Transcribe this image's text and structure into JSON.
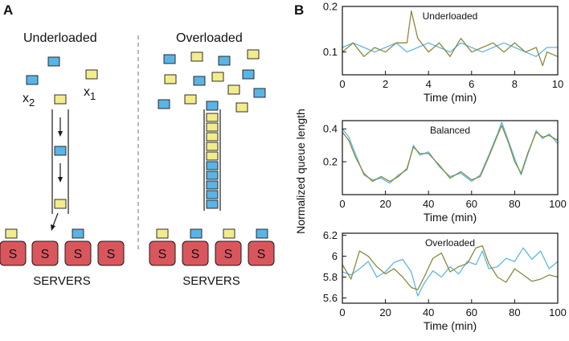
{
  "panel_a": {
    "letter": "A",
    "left": {
      "heading": "Underloaded",
      "queue_length": 3,
      "servers_label": "SERVERS"
    },
    "right": {
      "heading": "Overloaded",
      "queue_length": 10,
      "servers_label": "SERVERS"
    },
    "server_letter": "S",
    "x1": {
      "base": "x",
      "sub": "1"
    },
    "x2": {
      "base": "x",
      "sub": "2"
    },
    "colors": {
      "blue_job": "#5ab4e5",
      "yellow_job": "#f2ec8c",
      "server": "#d9575c",
      "divider": "#999999"
    }
  },
  "panel_b": {
    "letter": "B",
    "ylabel": "Normalized queue length",
    "colors": {
      "series_blue": "#5bb8e8",
      "series_olive": "#8b8a3c"
    }
  },
  "chart_data": [
    {
      "type": "line",
      "title": "Underloaded",
      "xlabel": "Time (min)",
      "xlim": [
        0,
        10
      ],
      "ylim": [
        0.05,
        0.2
      ],
      "xticks": [
        "0",
        "2",
        "4",
        "6",
        "8",
        "10"
      ],
      "yticks": [
        "0.1",
        "0.2"
      ],
      "ytick_values": [
        0.1,
        0.2
      ],
      "series": [
        {
          "color": "#5bb8e8",
          "x": [
            0,
            0.5,
            1,
            1.5,
            2,
            2.5,
            3,
            3.5,
            4,
            4.5,
            5,
            5.5,
            6,
            6.5,
            7,
            7.5,
            8,
            8.5,
            9,
            9.5,
            10
          ],
          "values": [
            0.11,
            0.12,
            0.11,
            0.1,
            0.11,
            0.12,
            0.1,
            0.11,
            0.12,
            0.11,
            0.1,
            0.12,
            0.11,
            0.1,
            0.11,
            0.12,
            0.11,
            0.1,
            0.09,
            0.11,
            0.11
          ]
        },
        {
          "color": "#8b8a3c",
          "x": [
            0,
            0.5,
            1,
            1.5,
            2,
            2.5,
            3,
            3.2,
            3.5,
            4,
            4.5,
            5,
            5.5,
            6,
            6.5,
            7,
            7.5,
            8,
            8.5,
            9,
            9.3,
            9.5,
            10
          ],
          "values": [
            0.1,
            0.12,
            0.09,
            0.11,
            0.1,
            0.12,
            0.12,
            0.19,
            0.13,
            0.1,
            0.12,
            0.09,
            0.13,
            0.1,
            0.11,
            0.12,
            0.1,
            0.12,
            0.1,
            0.11,
            0.07,
            0.1,
            0.09
          ]
        }
      ]
    },
    {
      "type": "line",
      "title": "Balanced",
      "xlabel": "Time (min)",
      "xlim": [
        0,
        100
      ],
      "ylim": [
        0,
        0.45
      ],
      "xticks": [
        "0",
        "20",
        "40",
        "60",
        "80",
        "100"
      ],
      "yticks": [
        "0.2",
        "0.4"
      ],
      "ytick_values": [
        0.2,
        0.4
      ],
      "series": [
        {
          "color": "#5bb8e8",
          "x": [
            0,
            3,
            6,
            10,
            14,
            18,
            22,
            26,
            30,
            33,
            36,
            40,
            45,
            50,
            55,
            60,
            64,
            68,
            72,
            74,
            77,
            80,
            83,
            86,
            90,
            93,
            96,
            100
          ],
          "values": [
            0.4,
            0.35,
            0.25,
            0.12,
            0.09,
            0.1,
            0.07,
            0.12,
            0.15,
            0.3,
            0.24,
            0.26,
            0.17,
            0.11,
            0.13,
            0.08,
            0.12,
            0.24,
            0.37,
            0.44,
            0.33,
            0.22,
            0.12,
            0.24,
            0.39,
            0.34,
            0.37,
            0.31
          ]
        },
        {
          "color": "#8b8a3c",
          "x": [
            0,
            3,
            6,
            10,
            14,
            18,
            22,
            26,
            30,
            33,
            36,
            40,
            45,
            50,
            55,
            60,
            64,
            68,
            72,
            74,
            77,
            80,
            83,
            86,
            90,
            93,
            96,
            100
          ],
          "values": [
            0.38,
            0.33,
            0.23,
            0.13,
            0.08,
            0.11,
            0.08,
            0.11,
            0.16,
            0.29,
            0.25,
            0.25,
            0.18,
            0.1,
            0.14,
            0.09,
            0.11,
            0.23,
            0.36,
            0.42,
            0.32,
            0.2,
            0.13,
            0.25,
            0.38,
            0.35,
            0.36,
            0.33
          ]
        }
      ]
    },
    {
      "type": "line",
      "title": "Overloaded",
      "xlabel": "Time (min)",
      "xlim": [
        0,
        100
      ],
      "ylim": [
        5.55,
        6.22
      ],
      "xticks": [
        "0",
        "20",
        "40",
        "60",
        "80",
        "100"
      ],
      "yticks": [
        "5.6",
        "5.8",
        "6",
        "6.2"
      ],
      "ytick_values": [
        5.6,
        5.8,
        6.0,
        6.2
      ],
      "series": [
        {
          "color": "#5bb8e8",
          "x": [
            0,
            4,
            8,
            12,
            16,
            20,
            24,
            28,
            32,
            35,
            38,
            42,
            46,
            50,
            54,
            58,
            62,
            65,
            68,
            72,
            76,
            80,
            84,
            88,
            92,
            96,
            100
          ],
          "values": [
            5.85,
            5.82,
            5.88,
            5.95,
            5.8,
            5.85,
            5.94,
            5.97,
            5.85,
            5.62,
            5.74,
            5.86,
            5.8,
            5.9,
            5.83,
            5.95,
            5.92,
            6.05,
            5.88,
            5.9,
            5.98,
            5.95,
            6.08,
            5.97,
            6.05,
            5.88,
            5.95
          ]
        },
        {
          "color": "#8b8a3c",
          "x": [
            0,
            4,
            8,
            12,
            16,
            20,
            24,
            28,
            32,
            35,
            38,
            42,
            46,
            50,
            54,
            58,
            62,
            65,
            68,
            72,
            76,
            80,
            84,
            88,
            92,
            96,
            100
          ],
          "values": [
            5.92,
            5.78,
            6.05,
            6.0,
            5.9,
            5.83,
            5.88,
            5.8,
            5.7,
            5.68,
            5.8,
            5.98,
            6.03,
            5.85,
            5.9,
            5.93,
            6.08,
            6.1,
            5.93,
            5.8,
            5.75,
            5.88,
            5.82,
            5.76,
            5.78,
            5.82,
            5.8
          ]
        }
      ]
    }
  ]
}
